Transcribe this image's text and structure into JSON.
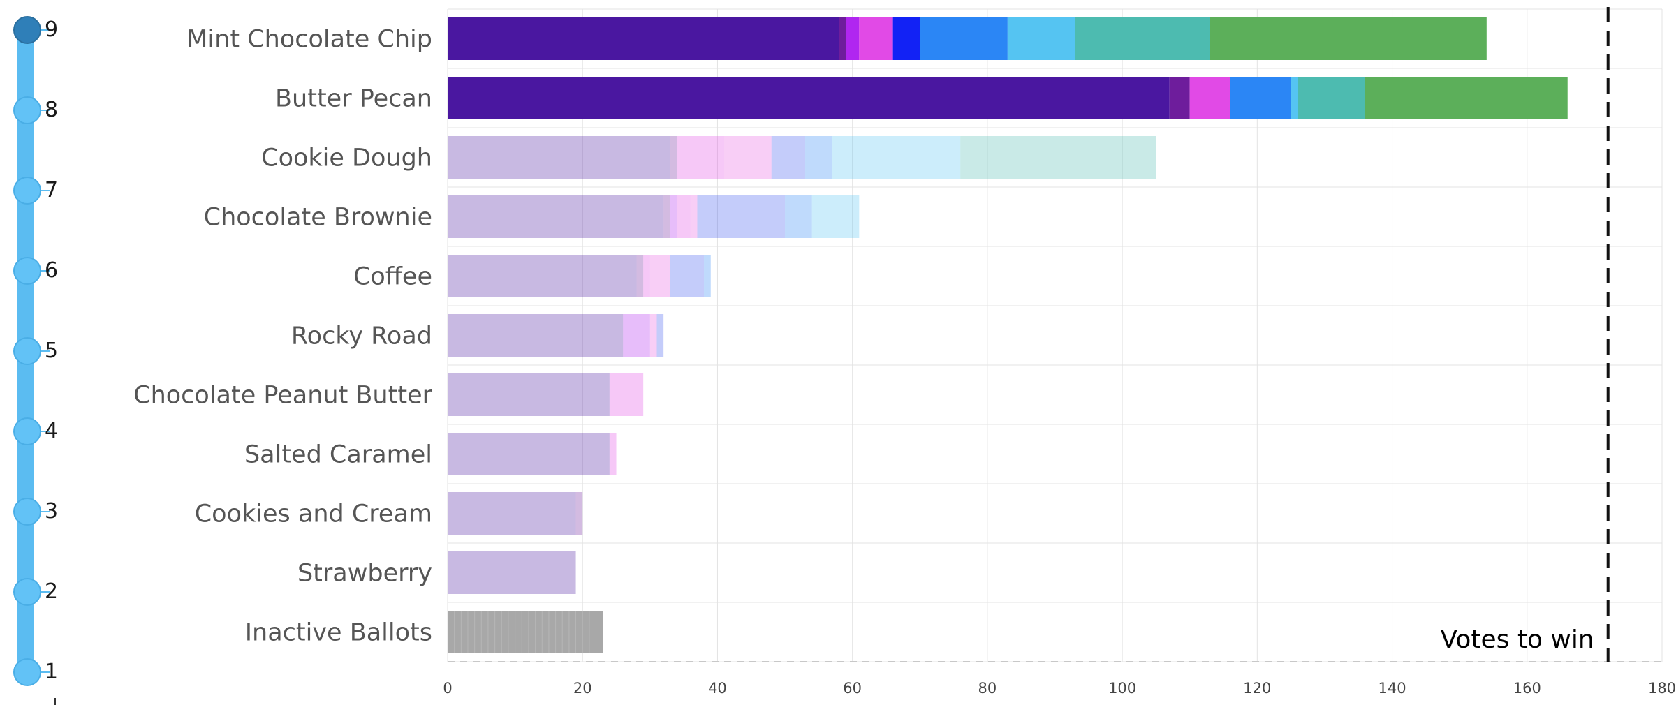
{
  "round_slider": {
    "rounds": [
      "1",
      "2",
      "3",
      "4",
      "5",
      "6",
      "7",
      "8",
      "9"
    ],
    "current_round": "9"
  },
  "chart_data": {
    "type": "bar",
    "orientation": "horizontal",
    "stacked": true,
    "title": "",
    "xlabel": "",
    "ylabel": "",
    "categories": [
      "Mint Chocolate Chip",
      "Butter Pecan",
      "Cookie Dough",
      "Chocolate Brownie",
      "Coffee",
      "Rocky Road",
      "Chocolate Peanut Butter",
      "Salted Caramel",
      "Cookies and Cream",
      "Strawberry",
      "Inactive Ballots"
    ],
    "eliminated": [
      "Cookie Dough",
      "Chocolate Brownie",
      "Coffee",
      "Rocky Road",
      "Chocolate Peanut Butter",
      "Salted Caramel",
      "Cookies and Cream",
      "Strawberry"
    ],
    "xlim": [
      0,
      180
    ],
    "xticks": [
      "0",
      "20",
      "40",
      "60",
      "80",
      "100",
      "120",
      "140",
      "160",
      "180"
    ],
    "grid": true,
    "legend": "none",
    "series": [
      {
        "color": "#4a17a0",
        "values": [
          58,
          107,
          33,
          32,
          28,
          26,
          24,
          24,
          19,
          19,
          0
        ]
      },
      {
        "color": "#6e1d9c",
        "values": [
          1,
          3,
          1,
          1,
          1,
          0,
          0,
          0,
          1,
          0,
          0
        ]
      },
      {
        "color": "#b026f0",
        "values": [
          2,
          0,
          0,
          1,
          0,
          4,
          0,
          0,
          0,
          0,
          0
        ]
      },
      {
        "color": "#e14ae6",
        "values": [
          5,
          6,
          7,
          2,
          1,
          0,
          5,
          1,
          0,
          0,
          0
        ]
      },
      {
        "color": "#e85ee0",
        "values": [
          0,
          0,
          7,
          1,
          3,
          1,
          0,
          0,
          0,
          0,
          0
        ]
      },
      {
        "color": "#1222f5",
        "values": [
          4,
          0,
          0,
          0,
          0,
          0,
          0,
          0,
          0,
          0,
          0
        ]
      },
      {
        "color": "#3d55f0",
        "values": [
          0,
          0,
          5,
          13,
          5,
          1,
          0,
          0,
          0,
          0,
          0
        ]
      },
      {
        "color": "#2b86f5",
        "values": [
          13,
          9,
          4,
          4,
          1,
          0,
          0,
          0,
          0,
          0,
          0
        ]
      },
      {
        "color": "#55c4f2",
        "values": [
          10,
          1,
          19,
          7,
          0,
          0,
          0,
          0,
          0,
          0,
          0
        ]
      },
      {
        "color": "#4dbbb0",
        "values": [
          20,
          10,
          29,
          0,
          0,
          0,
          0,
          0,
          0,
          0,
          0
        ]
      },
      {
        "color": "#5caf5a",
        "values": [
          41,
          30,
          0,
          0,
          0,
          0,
          0,
          0,
          0,
          0,
          0
        ]
      },
      {
        "color": "#a8a8a8",
        "values": [
          0,
          0,
          0,
          0,
          0,
          0,
          0,
          0,
          0,
          0,
          23
        ]
      }
    ],
    "threshold": {
      "value": 172,
      "label": "Votes to win"
    }
  }
}
